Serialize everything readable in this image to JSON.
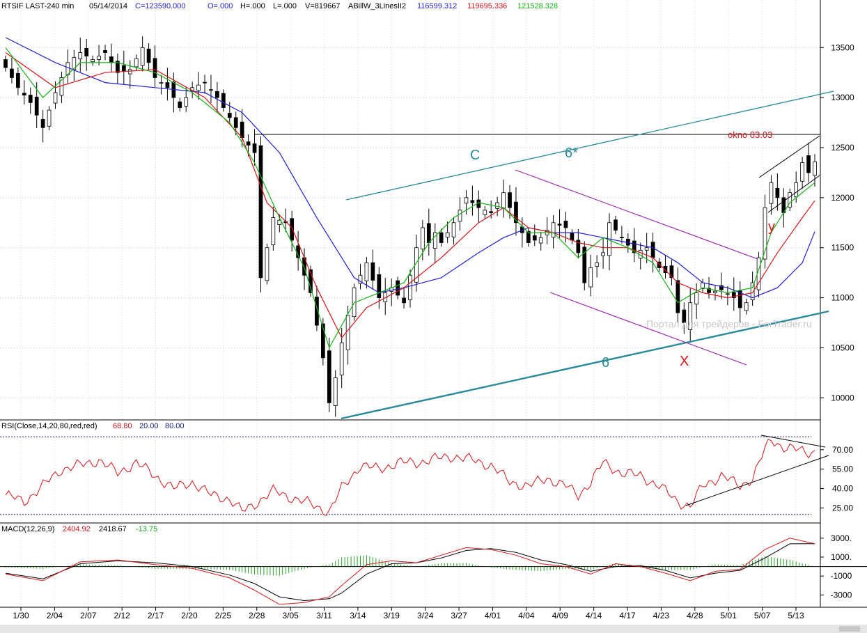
{
  "header": {
    "symbol": "RTSIF LAST-240 min",
    "date": "05/14/2014",
    "close": "C=123590.000",
    "open": "O=.000",
    "high": "H=.000",
    "low": "L=.000",
    "volume": "V=819667",
    "indicator": "ABillW_3LinesII2",
    "ma1": "116599.312",
    "ma2": "119695.336",
    "ma3": "121528.328"
  },
  "colors": {
    "ma_slow": "#1f1fd0",
    "ma_mid": "#d01818",
    "ma_fast": "#18b018",
    "channel": "#2a8a9a",
    "wedge": "#9a20b0",
    "label_red": "#d01818",
    "rsi": "#d01818",
    "macd": "#d01818",
    "signal": "#000000",
    "histogram": "#2a9a2a",
    "guide": "#202080"
  },
  "annotations": {
    "label_c": "C",
    "label_6star": "6*",
    "label_6": "6",
    "label_x": "X",
    "label_y": "y",
    "okno": "okno 03.03",
    "watermark": "Портал для трейдеров - ForTrader.ru"
  },
  "rsi_header": {
    "title": "RSI(Close,14,20,80,red,red)",
    "value": "68.80",
    "low": "20.00",
    "high": "80.00"
  },
  "macd_header": {
    "title": "MACD(12,26,9)",
    "macd": "2404.92",
    "signal": "2418.67",
    "hist": "-13.75"
  },
  "chart_data": [
    {
      "type": "candlestick",
      "ylim": [
        98000,
        138500
      ],
      "y_ticks": [
        "13500",
        "13000",
        "12500",
        "12000",
        "11500",
        "11000",
        "10500",
        "10000"
      ],
      "y_tick_values": [
        135000,
        130000,
        125000,
        120000,
        115000,
        110000,
        105000,
        100000
      ],
      "x_ticks": [
        "1/30",
        "2/04",
        "2/07",
        "2/12",
        "2/17",
        "2/20",
        "2/25",
        "2/28",
        "3/05",
        "3/11",
        "3/14",
        "3/19",
        "3/24",
        "3/27",
        "4/01",
        "4/04",
        "4/09",
        "4/14",
        "4/17",
        "4/23",
        "4/28",
        "5/01",
        "5/07",
        "5/13"
      ],
      "close_path": [
        [
          0,
          133000
        ],
        [
          2,
          131000
        ],
        [
          4,
          129500
        ],
        [
          6,
          127000
        ],
        [
          8,
          130500
        ],
        [
          10,
          133500
        ],
        [
          12,
          134500
        ],
        [
          14,
          133800
        ],
        [
          16,
          134500
        ],
        [
          18,
          132500
        ],
        [
          20,
          132800
        ],
        [
          22,
          135000
        ],
        [
          24,
          132000
        ],
        [
          26,
          131000
        ],
        [
          28,
          129000
        ],
        [
          30,
          131000
        ],
        [
          32,
          131500
        ],
        [
          34,
          130000
        ],
        [
          36,
          128000
        ],
        [
          38,
          126000
        ],
        [
          40,
          124500
        ],
        [
          41,
          112000
        ],
        [
          43,
          118000
        ],
        [
          45,
          117500
        ],
        [
          47,
          114000
        ],
        [
          49,
          110500
        ],
        [
          51,
          104000
        ],
        [
          52,
          99500
        ],
        [
          53,
          102000
        ],
        [
          54,
          105500
        ],
        [
          56,
          111000
        ],
        [
          58,
          113500
        ],
        [
          60,
          110000
        ],
        [
          62,
          111000
        ],
        [
          64,
          109500
        ],
        [
          66,
          115000
        ],
        [
          67,
          117000
        ],
        [
          68,
          115500
        ],
        [
          69,
          116500
        ],
        [
          70,
          115500
        ],
        [
          72,
          117500
        ],
        [
          74,
          120000
        ],
        [
          76,
          119000
        ],
        [
          78,
          118500
        ],
        [
          80,
          120500
        ],
        [
          82,
          117500
        ],
        [
          84,
          115500
        ],
        [
          86,
          116000
        ],
        [
          88,
          117500
        ],
        [
          90,
          117000
        ],
        [
          92,
          114500
        ],
        [
          93,
          111500
        ],
        [
          94,
          113000
        ],
        [
          95,
          113500
        ],
        [
          96,
          114500
        ],
        [
          97,
          117500
        ],
        [
          99,
          116000
        ],
        [
          101,
          114500
        ],
        [
          103,
          115000
        ],
        [
          105,
          113000
        ],
        [
          107,
          112000
        ],
        [
          108,
          108500
        ],
        [
          109,
          107500
        ],
        [
          110,
          109500
        ],
        [
          112,
          111500
        ],
        [
          113,
          110500
        ],
        [
          115,
          110800
        ],
        [
          117,
          110000
        ],
        [
          118,
          109000
        ],
        [
          119,
          109500
        ],
        [
          120,
          111500
        ],
        [
          121,
          114000
        ],
        [
          122,
          119000
        ],
        [
          123,
          121500
        ],
        [
          124,
          120000
        ],
        [
          125,
          118500
        ],
        [
          126,
          120500
        ],
        [
          127,
          121500
        ],
        [
          128,
          123500
        ],
        [
          129,
          122500
        ],
        [
          130,
          123590
        ]
      ],
      "ma_slow_path": [
        [
          0,
          136000
        ],
        [
          8,
          133500
        ],
        [
          16,
          131500
        ],
        [
          24,
          131000
        ],
        [
          32,
          130500
        ],
        [
          38,
          128500
        ],
        [
          44,
          124500
        ],
        [
          50,
          118000
        ],
        [
          56,
          112000
        ],
        [
          60,
          110500
        ],
        [
          64,
          111000
        ],
        [
          70,
          112000
        ],
        [
          76,
          114500
        ],
        [
          80,
          116000
        ],
        [
          84,
          117000
        ],
        [
          88,
          116500
        ],
        [
          92,
          116500
        ],
        [
          96,
          116000
        ],
        [
          100,
          115500
        ],
        [
          104,
          115000
        ],
        [
          108,
          113500
        ],
        [
          112,
          111500
        ],
        [
          116,
          111000
        ],
        [
          120,
          110000
        ],
        [
          124,
          111000
        ],
        [
          128,
          113500
        ],
        [
          130,
          116600
        ]
      ],
      "ma_mid_path": [
        [
          0,
          134500
        ],
        [
          8,
          131000
        ],
        [
          16,
          132500
        ],
        [
          24,
          132800
        ],
        [
          32,
          130000
        ],
        [
          38,
          126000
        ],
        [
          42,
          119500
        ],
        [
          46,
          117000
        ],
        [
          50,
          111000
        ],
        [
          54,
          106000
        ],
        [
          58,
          109000
        ],
        [
          64,
          111000
        ],
        [
          70,
          114000
        ],
        [
          76,
          117500
        ],
        [
          80,
          119000
        ],
        [
          84,
          117000
        ],
        [
          88,
          116500
        ],
        [
          92,
          115500
        ],
        [
          96,
          115000
        ],
        [
          100,
          115000
        ],
        [
          104,
          114000
        ],
        [
          108,
          111500
        ],
        [
          112,
          110500
        ],
        [
          116,
          110000
        ],
        [
          120,
          110500
        ],
        [
          124,
          114500
        ],
        [
          128,
          118000
        ],
        [
          130,
          119700
        ]
      ],
      "ma_fast_path": [
        [
          0,
          135000
        ],
        [
          6,
          130000
        ],
        [
          12,
          133500
        ],
        [
          18,
          133500
        ],
        [
          24,
          132500
        ],
        [
          30,
          130500
        ],
        [
          36,
          127500
        ],
        [
          40,
          123500
        ],
        [
          44,
          118000
        ],
        [
          48,
          113000
        ],
        [
          52,
          105000
        ],
        [
          56,
          109500
        ],
        [
          60,
          110500
        ],
        [
          64,
          111500
        ],
        [
          68,
          115500
        ],
        [
          72,
          118000
        ],
        [
          76,
          119500
        ],
        [
          80,
          119000
        ],
        [
          84,
          116500
        ],
        [
          88,
          116500
        ],
        [
          92,
          114000
        ],
        [
          96,
          116000
        ],
        [
          100,
          115000
        ],
        [
          104,
          113500
        ],
        [
          108,
          109500
        ],
        [
          112,
          111000
        ],
        [
          116,
          110500
        ],
        [
          120,
          111000
        ],
        [
          123,
          116500
        ],
        [
          126,
          119500
        ],
        [
          130,
          121500
        ]
      ]
    },
    {
      "type": "line",
      "title": "RSI(Close,14,20,80,red,red)",
      "ylim": [
        15,
        85
      ],
      "y_ticks": [
        "70.00",
        "55.00",
        "40.00",
        "25.00"
      ],
      "y_tick_values": [
        70,
        55,
        40,
        25
      ],
      "guides": [
        20,
        80
      ],
      "values_path": [
        [
          0,
          35
        ],
        [
          3,
          30
        ],
        [
          6,
          42
        ],
        [
          9,
          55
        ],
        [
          12,
          58
        ],
        [
          15,
          62
        ],
        [
          18,
          52
        ],
        [
          21,
          60
        ],
        [
          24,
          50
        ],
        [
          27,
          40
        ],
        [
          30,
          45
        ],
        [
          33,
          35
        ],
        [
          36,
          32
        ],
        [
          38,
          22
        ],
        [
          40,
          28
        ],
        [
          43,
          38
        ],
        [
          46,
          33
        ],
        [
          49,
          28
        ],
        [
          52,
          22
        ],
        [
          54,
          40
        ],
        [
          57,
          58
        ],
        [
          60,
          55
        ],
        [
          63,
          60
        ],
        [
          66,
          60
        ],
        [
          69,
          63
        ],
        [
          72,
          65
        ],
        [
          75,
          62
        ],
        [
          78,
          58
        ],
        [
          81,
          45
        ],
        [
          84,
          42
        ],
        [
          87,
          48
        ],
        [
          90,
          42
        ],
        [
          92,
          35
        ],
        [
          94,
          45
        ],
        [
          96,
          60
        ],
        [
          99,
          52
        ],
        [
          102,
          50
        ],
        [
          105,
          42
        ],
        [
          108,
          30
        ],
        [
          110,
          26
        ],
        [
          112,
          42
        ],
        [
          115,
          50
        ],
        [
          118,
          42
        ],
        [
          120,
          48
        ],
        [
          122,
          70
        ],
        [
          123,
          78
        ],
        [
          125,
          72
        ],
        [
          127,
          70
        ],
        [
          129,
          68
        ],
        [
          130,
          68.8
        ]
      ]
    },
    {
      "type": "line",
      "title": "MACD(12,26,9)",
      "ylim": [
        -4300,
        3500
      ],
      "y_ticks": [
        "3000.",
        "1000.",
        "-1000",
        "-3000"
      ],
      "y_tick_values": [
        3000,
        1000,
        -1000,
        -3000
      ],
      "macd_path": [
        [
          0,
          -800
        ],
        [
          6,
          -1500
        ],
        [
          12,
          500
        ],
        [
          18,
          700
        ],
        [
          24,
          200
        ],
        [
          30,
          -200
        ],
        [
          36,
          -1200
        ],
        [
          40,
          -2500
        ],
        [
          44,
          -4000
        ],
        [
          48,
          -3800
        ],
        [
          52,
          -3200
        ],
        [
          54,
          -2000
        ],
        [
          58,
          200
        ],
        [
          62,
          600
        ],
        [
          66,
          400
        ],
        [
          70,
          1200
        ],
        [
          74,
          2000
        ],
        [
          78,
          1800
        ],
        [
          82,
          1200
        ],
        [
          86,
          300
        ],
        [
          90,
          0
        ],
        [
          94,
          -800
        ],
        [
          98,
          300
        ],
        [
          102,
          0
        ],
        [
          106,
          -700
        ],
        [
          110,
          -1500
        ],
        [
          114,
          -500
        ],
        [
          118,
          -300
        ],
        [
          122,
          1800
        ],
        [
          126,
          3000
        ],
        [
          130,
          2400
        ]
      ],
      "signal_path": [
        [
          0,
          -700
        ],
        [
          6,
          -1300
        ],
        [
          12,
          300
        ],
        [
          18,
          600
        ],
        [
          24,
          400
        ],
        [
          30,
          0
        ],
        [
          36,
          -900
        ],
        [
          40,
          -1800
        ],
        [
          44,
          -3200
        ],
        [
          48,
          -3600
        ],
        [
          52,
          -3400
        ],
        [
          54,
          -2800
        ],
        [
          58,
          -800
        ],
        [
          62,
          300
        ],
        [
          66,
          400
        ],
        [
          70,
          900
        ],
        [
          74,
          1700
        ],
        [
          78,
          1900
        ],
        [
          82,
          1500
        ],
        [
          86,
          700
        ],
        [
          90,
          200
        ],
        [
          94,
          -500
        ],
        [
          98,
          0
        ],
        [
          102,
          100
        ],
        [
          106,
          -400
        ],
        [
          110,
          -1200
        ],
        [
          114,
          -700
        ],
        [
          118,
          -400
        ],
        [
          122,
          900
        ],
        [
          126,
          2400
        ],
        [
          130,
          2418
        ]
      ]
    }
  ]
}
